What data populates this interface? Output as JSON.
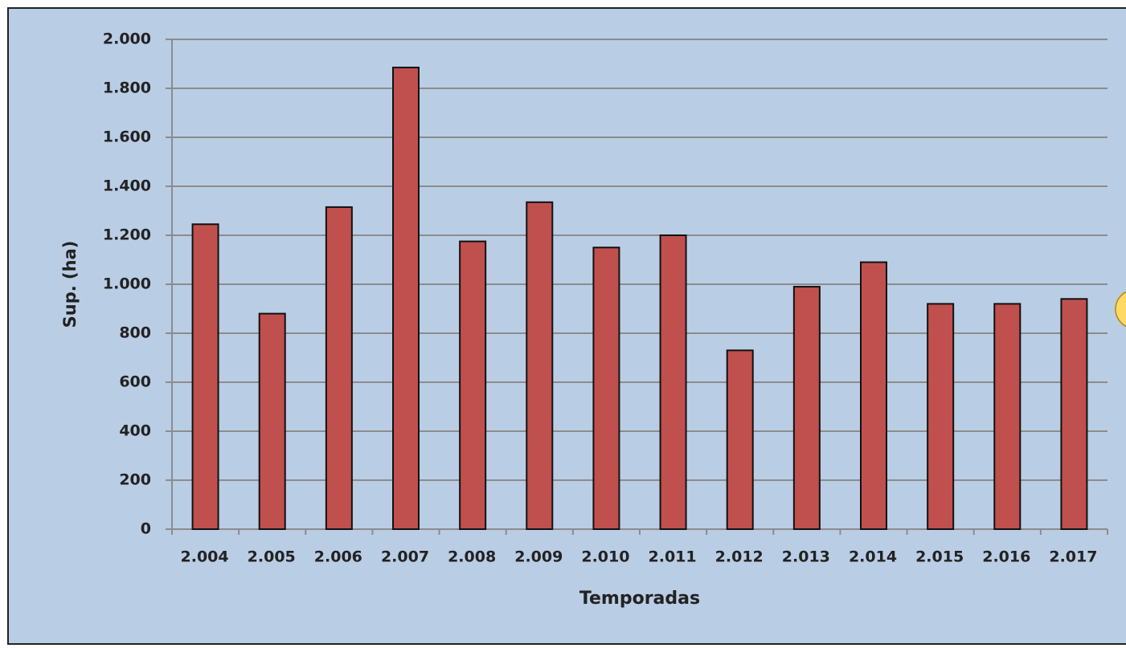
{
  "chart_data": {
    "type": "bar",
    "categories": [
      "2.004",
      "2.005",
      "2.006",
      "2.007",
      "2.008",
      "2.009",
      "2.010",
      "2.011",
      "2.012",
      "2.013",
      "2.014",
      "2.015",
      "2.016",
      "2.017"
    ],
    "values": [
      1245,
      880,
      1315,
      1885,
      1175,
      1335,
      1150,
      1200,
      730,
      990,
      1090,
      920,
      920,
      940
    ],
    "color": "#c0504d",
    "y_label": "Sup. (ha)",
    "x_label": "Temporadas",
    "ylim": [
      0,
      2000
    ],
    "yticks": [
      0,
      {
        "value": 200,
        "label": "200"
      },
      400,
      600,
      800,
      {
        "value": 1000,
        "label": "1.000"
      },
      {
        "value": 1200,
        "label": "1.200"
      },
      {
        "value": 1400,
        "label": "1.400"
      },
      {
        "value": 1600,
        "label": "1.600"
      },
      {
        "value": 1800,
        "label": "1.800"
      },
      {
        "value": 2000,
        "label": "2.000"
      }
    ],
    "grid": true
  }
}
